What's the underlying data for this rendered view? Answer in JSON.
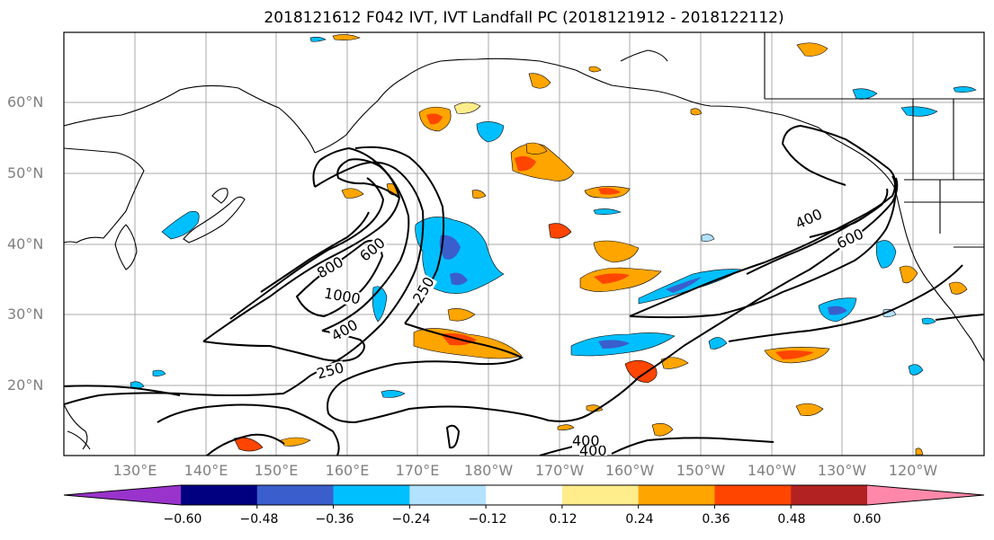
{
  "title": "2018121612 F042 IVT, IVT Landfall PC (2018121912 - 2018122112)",
  "lat_labels": [
    "60°N",
    "50°N",
    "40°N",
    "30°N",
    "20°N"
  ],
  "lon_labels": [
    "130°E",
    "140°E",
    "150°E",
    "160°E",
    "170°E",
    "180°W",
    "170°W",
    "160°W",
    "150°W",
    "140°W",
    "130°W",
    "120°W"
  ],
  "contour_labels": [
    "800",
    "600",
    "1000",
    "400",
    "250",
    "250",
    "400",
    "600",
    "400",
    "400"
  ],
  "colorbar": {
    "colors": [
      "#9933cc",
      "#000080",
      "#3a5fcd",
      "#00bfff",
      "#b2e2ff",
      "#ffffff",
      "#ffec8b",
      "#ffa500",
      "#ff4500",
      "#b22222",
      "#ff88aa"
    ],
    "tick_labels": [
      "−0.60",
      "−0.48",
      "−0.36",
      "−0.24",
      "−0.12",
      "0.12",
      "0.24",
      "0.36",
      "0.48",
      "0.60"
    ]
  }
}
